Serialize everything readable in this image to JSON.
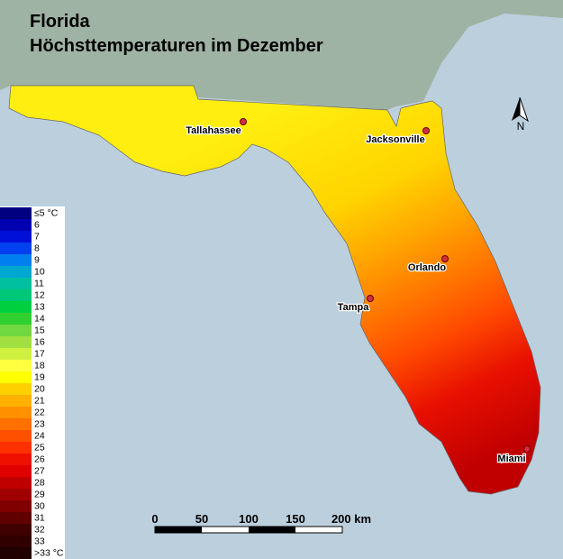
{
  "title": {
    "line1": "Florida",
    "line2": "Höchsttemperaturen im Dezember"
  },
  "legend": {
    "labels": [
      "≤5 °C",
      "6",
      "7",
      "8",
      "9",
      "10",
      "11",
      "12",
      "13",
      "14",
      "15",
      "16",
      "17",
      "18",
      "19",
      "20",
      "21",
      "22",
      "23",
      "24",
      "25",
      "26",
      "27",
      "28",
      "29",
      "30",
      "31",
      "32",
      "33",
      ">33 °C"
    ],
    "colors": [
      "#000080",
      "#0000b0",
      "#0010d8",
      "#0040f0",
      "#0080f0",
      "#00a8d0",
      "#00c0a0",
      "#00c878",
      "#00d040",
      "#30d030",
      "#70d840",
      "#a0e040",
      "#d0f040",
      "#ffff40",
      "#ffff00",
      "#ffd000",
      "#ffb000",
      "#ff9000",
      "#ff7000",
      "#ff5000",
      "#ff3000",
      "#f01000",
      "#e00000",
      "#c00000",
      "#a00000",
      "#800000",
      "#600000",
      "#400000",
      "#300000",
      "#200000"
    ]
  },
  "cities": [
    {
      "name": "Tallahassee"
    },
    {
      "name": "Jacksonville"
    },
    {
      "name": "Orlando"
    },
    {
      "name": "Tampa"
    },
    {
      "name": "Miami"
    }
  ],
  "scale": {
    "labels": [
      "0",
      "50",
      "100",
      "150",
      "200 km"
    ]
  },
  "north": "N"
}
